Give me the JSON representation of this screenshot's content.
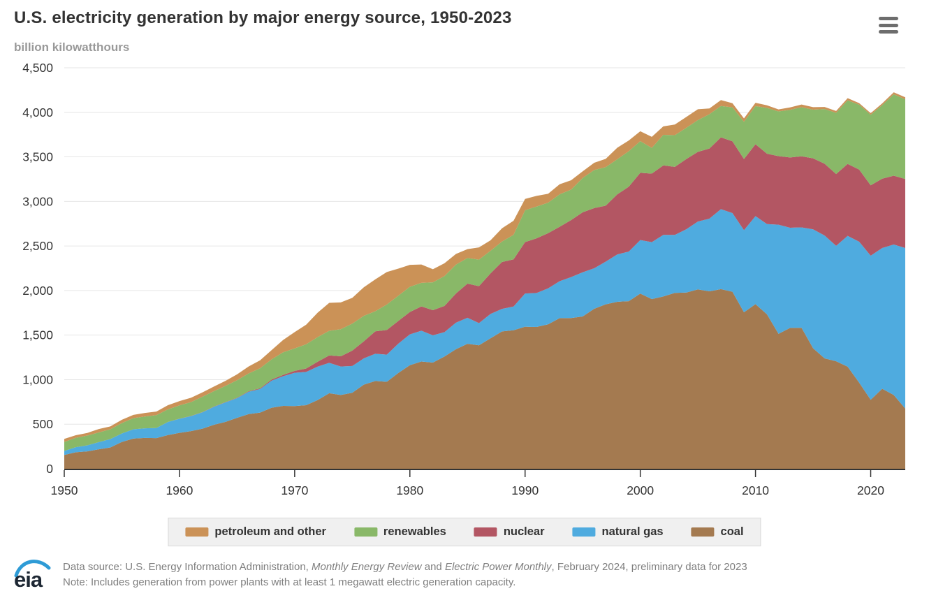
{
  "header": {
    "title": "U.S. electricity generation by major energy source, 1950-2023",
    "subtitle": "billion kilowatthours",
    "menu_icon": "hamburger-menu-icon"
  },
  "legend": {
    "items": [
      {
        "label": "petroleum and other",
        "color": "#cb9257"
      },
      {
        "label": "renewables",
        "color": "#89b868"
      },
      {
        "label": "nuclear",
        "color": "#b35663"
      },
      {
        "label": "natural gas",
        "color": "#4fabdf"
      },
      {
        "label": "coal",
        "color": "#a47a50"
      }
    ]
  },
  "footer": {
    "logo": "eia-logo",
    "source_prefix": "Data source: U.S. Energy Information Administration, ",
    "source_italic1": "Monthly Energy Review",
    "source_mid": " and ",
    "source_italic2": "Electric Power Monthly",
    "source_suffix": ", February 2024, preliminary data for 2023",
    "note": "Note: Includes generation from power plants with at least 1 megawatt electric generation capacity."
  },
  "chart_data": {
    "type": "area",
    "stacked": true,
    "title": "U.S. electricity generation by major energy source, 1950-2023",
    "ylabel": "billion kilowatthours",
    "xlabel": "",
    "grid": true,
    "legend_position": "bottom",
    "ylim": [
      0,
      4500
    ],
    "ytick_step": 500,
    "x_start": 1950,
    "x_end": 2023,
    "xticks": [
      1950,
      1960,
      1970,
      1980,
      1990,
      2000,
      2010,
      2020
    ],
    "colors": {
      "gridline": "#e6e6e6",
      "axis": "#333333",
      "tick_label": "#333333"
    },
    "series": [
      {
        "name": "coal",
        "color": "#a47a50",
        "values": [
          155,
          185,
          195,
          219,
          239,
          301,
          339,
          346,
          344,
          378,
          403,
          422,
          450,
          494,
          526,
          571,
          613,
          630,
          685,
          706,
          704,
          713,
          771,
          848,
          828,
          853,
          944,
          985,
          976,
          1075,
          1162,
          1203,
          1192,
          1259,
          1342,
          1402,
          1386,
          1464,
          1541,
          1554,
          1594,
          1591,
          1621,
          1690,
          1691,
          1709,
          1795,
          1845,
          1874,
          1881,
          1966,
          1904,
          1933,
          1974,
          1978,
          2013,
          1991,
          2016,
          1986,
          1756,
          1847,
          1733,
          1514,
          1581,
          1582,
          1352,
          1239,
          1206,
          1146,
          966,
          774,
          898,
          828,
          675
        ]
      },
      {
        "name": "natural gas",
        "color": "#4fabdf",
        "values": [
          45,
          57,
          68,
          80,
          94,
          95,
          104,
          108,
          114,
          147,
          158,
          169,
          184,
          202,
          220,
          222,
          251,
          265,
          304,
          333,
          373,
          374,
          376,
          341,
          320,
          300,
          295,
          306,
          305,
          329,
          346,
          346,
          305,
          274,
          297,
          292,
          249,
          273,
          253,
          267,
          373,
          382,
          404,
          415,
          460,
          496,
          455,
          479,
          531,
          556,
          601,
          639,
          691,
          650,
          710,
          761,
          816,
          897,
          883,
          921,
          988,
          1013,
          1225,
          1124,
          1127,
          1335,
          1378,
          1296,
          1468,
          1582,
          1617,
          1579,
          1689,
          1802
        ]
      },
      {
        "name": "nuclear",
        "color": "#b35663",
        "values": [
          0,
          0,
          0,
          0,
          0,
          0,
          0,
          0,
          0,
          0,
          1,
          2,
          2,
          3,
          3,
          4,
          6,
          8,
          13,
          14,
          22,
          38,
          54,
          83,
          114,
          173,
          191,
          251,
          276,
          255,
          251,
          273,
          283,
          294,
          328,
          384,
          414,
          455,
          527,
          529,
          577,
          613,
          619,
          610,
          640,
          673,
          675,
          629,
          674,
          728,
          754,
          769,
          780,
          764,
          788,
          782,
          787,
          806,
          806,
          799,
          807,
          790,
          769,
          789,
          797,
          797,
          806,
          805,
          807,
          809,
          790,
          778,
          772,
          775
        ]
      },
      {
        "name": "renewables",
        "color": "#89b868",
        "values": [
          101,
          105,
          109,
          109,
          110,
          117,
          125,
          132,
          144,
          141,
          149,
          155,
          172,
          172,
          181,
          197,
          199,
          225,
          226,
          254,
          251,
          272,
          277,
          276,
          304,
          303,
          286,
          226,
          286,
          283,
          283,
          264,
          312,
          335,
          324,
          287,
          298,
          254,
          229,
          275,
          357,
          357,
          342,
          365,
          342,
          385,
          427,
          432,
          394,
          398,
          356,
          288,
          343,
          355,
          351,
          357,
          385,
          352,
          381,
          417,
          428,
          513,
          502,
          534,
          551,
          546,
          613,
          687,
          713,
          728,
          792,
          826,
          913,
          894
        ]
      },
      {
        "name": "petroleum and other",
        "color": "#cb9257",
        "values": [
          34,
          29,
          30,
          38,
          32,
          37,
          37,
          40,
          40,
          47,
          48,
          49,
          49,
          52,
          57,
          65,
          79,
          89,
          104,
          138,
          184,
          220,
          274,
          314,
          301,
          289,
          320,
          358,
          365,
          304,
          246,
          206,
          147,
          144,
          120,
          100,
          137,
          118,
          149,
          158,
          127,
          119,
          100,
          113,
          105,
          75,
          82,
          93,
          129,
          121,
          111,
          125,
          95,
          120,
          121,
          122,
          64,
          66,
          46,
          39,
          37,
          30,
          23,
          27,
          30,
          28,
          24,
          21,
          25,
          18,
          17,
          19,
          23,
          23
        ]
      }
    ]
  }
}
